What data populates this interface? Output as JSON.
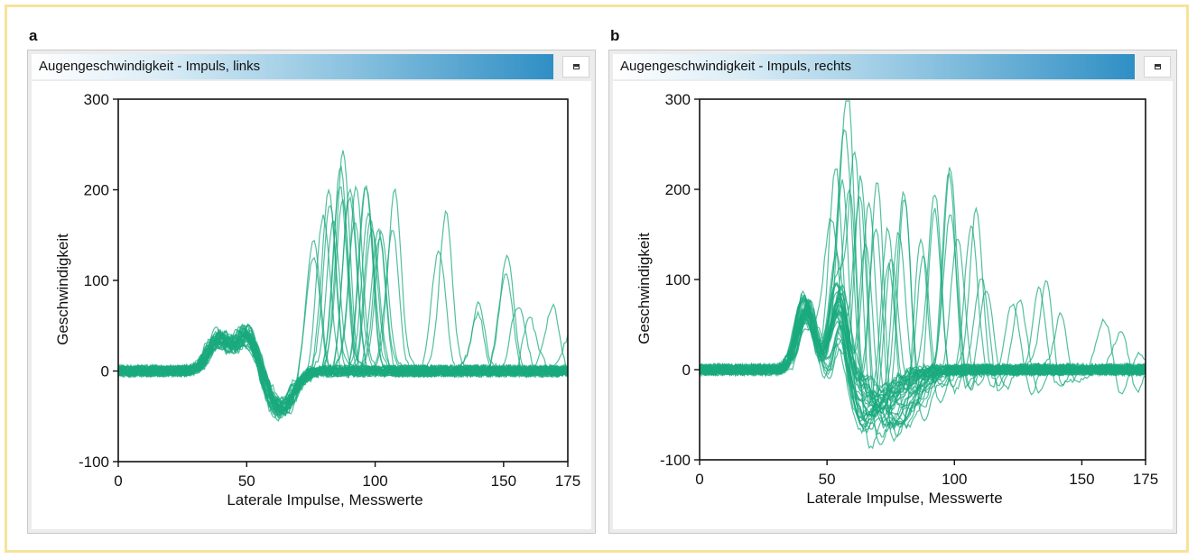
{
  "panels": [
    {
      "letter": "a",
      "window_title": "Augengeschwindigkeit - Impuls, links"
    },
    {
      "letter": "b",
      "window_title": "Augengeschwindigkeit - Impuls, rechts"
    }
  ],
  "colors": {
    "trace": "#1aaa7e",
    "border": "#f7e29a",
    "titlebar_accent": "#2f8fc4"
  },
  "icons": {
    "maximize": "maximize-icon"
  },
  "chart_data": [
    {
      "type": "line",
      "title": "Augengeschwindigkeit - Impuls, links",
      "xlabel": "Laterale Impulse, Messwerte",
      "ylabel": "Geschwindigkeit",
      "xlim": [
        0,
        175
      ],
      "ylim": [
        -100,
        300
      ],
      "xticks": [
        0,
        50,
        100,
        150,
        175
      ],
      "yticks": [
        -100,
        0,
        100,
        200,
        300
      ],
      "grid": false,
      "n_traces": 40,
      "baseline_component": {
        "positive_peak": {
          "x": 42,
          "y": 50
        },
        "negative_peak": {
          "x": 63,
          "y": -42
        }
      },
      "corrective_peaks": [
        {
          "x": 77,
          "y": 155
        },
        {
          "x": 80,
          "y": 190
        },
        {
          "x": 83,
          "y": 215
        },
        {
          "x": 86,
          "y": 240
        },
        {
          "x": 88,
          "y": 225
        },
        {
          "x": 90,
          "y": 210
        },
        {
          "x": 92,
          "y": 200
        },
        {
          "x": 95,
          "y": 235
        },
        {
          "x": 97,
          "y": 215
        },
        {
          "x": 100,
          "y": 175
        },
        {
          "x": 103,
          "y": 150
        },
        {
          "x": 107,
          "y": 190
        },
        {
          "x": 126,
          "y": 175
        },
        {
          "x": 140,
          "y": 80
        },
        {
          "x": 150,
          "y": 140
        },
        {
          "x": 155,
          "y": 100
        },
        {
          "x": 160,
          "y": 70
        },
        {
          "x": 167,
          "y": 80
        },
        {
          "x": 174,
          "y": 50
        }
      ]
    },
    {
      "type": "line",
      "title": "Augengeschwindigkeit - Impuls, rechts",
      "xlabel": "Laterale Impulse, Messwerte",
      "ylabel": "Geschwindigkeit",
      "xlim": [
        0,
        175
      ],
      "ylim": [
        -100,
        300
      ],
      "xticks": [
        0,
        50,
        100,
        150,
        175
      ],
      "yticks": [
        -100,
        0,
        100,
        200,
        300
      ],
      "grid": false,
      "n_traces": 40,
      "baseline_component": {
        "positive_peak": {
          "x": 42,
          "y": 70
        },
        "dip": {
          "x": 48,
          "y": 10
        },
        "negative_trough": {
          "x": 70,
          "y": -60
        }
      },
      "corrective_peaks": [
        {
          "x": 52,
          "y": 120
        },
        {
          "x": 55,
          "y": 200
        },
        {
          "x": 58,
          "y": 290
        },
        {
          "x": 61,
          "y": 250
        },
        {
          "x": 64,
          "y": 270
        },
        {
          "x": 67,
          "y": 265
        },
        {
          "x": 70,
          "y": 245
        },
        {
          "x": 73,
          "y": 230
        },
        {
          "x": 77,
          "y": 200
        },
        {
          "x": 82,
          "y": 240
        },
        {
          "x": 87,
          "y": 195
        },
        {
          "x": 92,
          "y": 210
        },
        {
          "x": 97,
          "y": 245
        },
        {
          "x": 100,
          "y": 200
        },
        {
          "x": 108,
          "y": 200
        },
        {
          "x": 112,
          "y": 110
        },
        {
          "x": 125,
          "y": 80
        },
        {
          "x": 135,
          "y": 105
        },
        {
          "x": 143,
          "y": 80
        },
        {
          "x": 158,
          "y": 60
        },
        {
          "x": 165,
          "y": 55
        },
        {
          "x": 172,
          "y": 25
        }
      ]
    }
  ]
}
